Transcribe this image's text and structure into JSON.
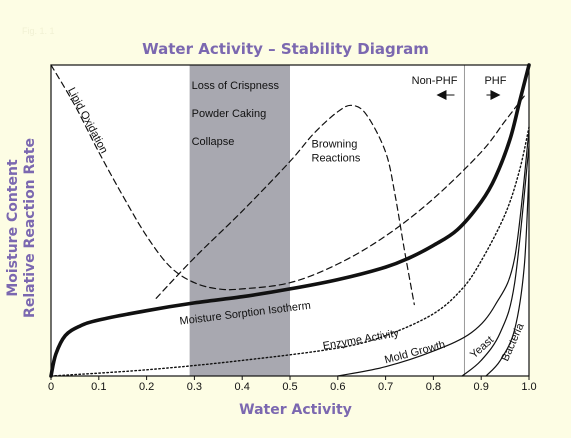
{
  "figure_tag": "Fig. 1. 1",
  "chart_data": {
    "type": "line",
    "title": "Water Activity – Stability Diagram",
    "xlabel": "Water Activity",
    "ylabel_lines": [
      "Moisture Content",
      "Relative Reaction Rate"
    ],
    "xlim": [
      0,
      1.0
    ],
    "ylim": [
      0,
      1.0
    ],
    "grid": false,
    "x_ticks": [
      0,
      0.1,
      0.2,
      0.3,
      0.4,
      0.5,
      0.6,
      0.7,
      0.8,
      0.9,
      1.0
    ],
    "x_tick_labels": [
      "0",
      "0.1",
      "0.2",
      "0.3",
      "0.4",
      "0.5",
      "0.6",
      "0.7",
      "0.8",
      "0.9",
      "1.0"
    ],
    "shaded_band": {
      "x": [
        0.29,
        0.5
      ],
      "labels": [
        "Loss of Crispness",
        "Powder Caking",
        "Collapse"
      ],
      "color": "#a8a8b0"
    },
    "phf_divider": {
      "x": 0.865,
      "left_label": "Non-PHF",
      "right_label": "PHF"
    },
    "series": [
      {
        "name": "Moisture Sorption Isotherm",
        "style": "solid-thick",
        "x": [
          0,
          0.01,
          0.03,
          0.06,
          0.1,
          0.2,
          0.3,
          0.4,
          0.5,
          0.6,
          0.7,
          0.75,
          0.8,
          0.85,
          0.9,
          0.93,
          0.96,
          0.98,
          1.0
        ],
        "y": [
          0,
          0.07,
          0.13,
          0.16,
          0.18,
          0.21,
          0.235,
          0.255,
          0.28,
          0.31,
          0.35,
          0.38,
          0.42,
          0.47,
          0.56,
          0.64,
          0.76,
          0.88,
          1.0
        ]
      },
      {
        "name": "Lipid Oxidation",
        "style": "dashed",
        "x": [
          0,
          0.05,
          0.1,
          0.15,
          0.2,
          0.25,
          0.3,
          0.35,
          0.4,
          0.5,
          0.6,
          0.7,
          0.8,
          0.9,
          0.95,
          0.99
        ],
        "y": [
          1.0,
          0.87,
          0.72,
          0.58,
          0.45,
          0.35,
          0.3,
          0.28,
          0.28,
          0.3,
          0.36,
          0.45,
          0.57,
          0.72,
          0.82,
          0.9
        ]
      },
      {
        "name": "Browning Reactions",
        "style": "dashed",
        "x": [
          0.22,
          0.3,
          0.4,
          0.5,
          0.55,
          0.6,
          0.63,
          0.66,
          0.7,
          0.72,
          0.74,
          0.76
        ],
        "y": [
          0.25,
          0.38,
          0.53,
          0.69,
          0.78,
          0.85,
          0.87,
          0.84,
          0.72,
          0.58,
          0.4,
          0.23
        ]
      },
      {
        "name": "Enzyme Activity",
        "style": "dotted",
        "x": [
          0,
          0.2,
          0.4,
          0.6,
          0.7,
          0.8,
          0.86,
          0.9,
          0.95,
          0.98,
          1.0
        ],
        "y": [
          0,
          0.02,
          0.05,
          0.09,
          0.13,
          0.2,
          0.28,
          0.37,
          0.52,
          0.66,
          0.8
        ]
      },
      {
        "name": "Mold Growth",
        "style": "solid",
        "x": [
          0.6,
          0.7,
          0.8,
          0.88,
          0.93,
          0.97,
          1.0
        ],
        "y": [
          0,
          0.03,
          0.08,
          0.14,
          0.23,
          0.38,
          0.79
        ]
      },
      {
        "name": "Yeast",
        "style": "solid",
        "x": [
          0.86,
          0.9,
          0.94,
          0.97,
          1.0
        ],
        "y": [
          0,
          0.05,
          0.14,
          0.3,
          0.74
        ]
      },
      {
        "name": "Bacteria",
        "style": "solid",
        "x": [
          0.91,
          0.94,
          0.97,
          0.99,
          1.0
        ],
        "y": [
          0,
          0.05,
          0.15,
          0.35,
          0.66
        ]
      }
    ],
    "colors": {
      "title": "#7b68b0",
      "background": "#fdfde4",
      "band": "#a8a8b0"
    }
  }
}
